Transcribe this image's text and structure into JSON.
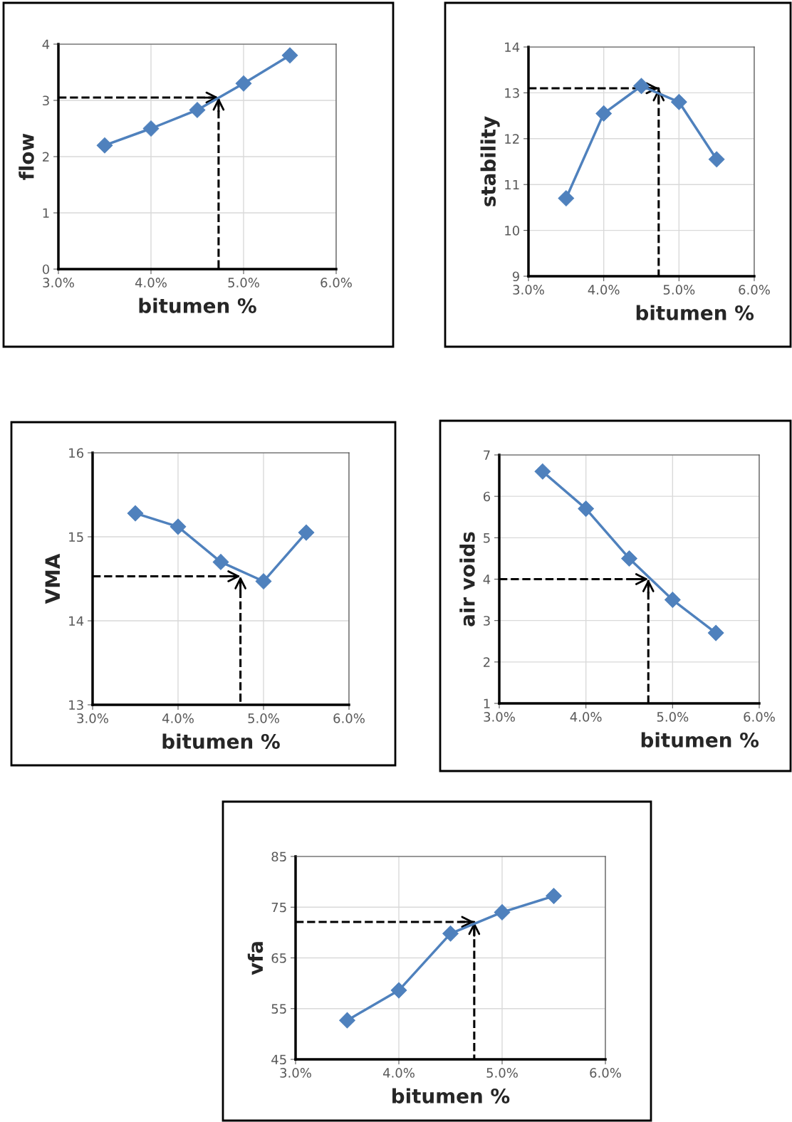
{
  "chart_data": [
    {
      "type": "line",
      "xlabel": "bitumen %",
      "ylabel": "flow",
      "x": [
        3.5,
        4.0,
        4.5,
        5.0,
        5.5
      ],
      "xlim": [
        3,
        6
      ],
      "xticks": [
        {
          "value": 3,
          "label": "3.0%"
        },
        {
          "value": 4,
          "label": "4.0%"
        },
        {
          "value": 5,
          "label": "5.0%"
        },
        {
          "value": 6,
          "label": "6.0%"
        }
      ],
      "ylim": [
        0,
        4
      ],
      "yticks": [
        0,
        1,
        2,
        3,
        4
      ],
      "grid": true,
      "marker": "diamond",
      "series": [
        {
          "color": "#4f81bd",
          "values": [
            2.2,
            2.5,
            2.83,
            3.3,
            3.8
          ]
        },
        {
          "type": "line",
          "line_style": "dashed",
          "marker": "none",
          "color": "#000000",
          "x": [
            3.0,
            4.73,
            4.73
          ],
          "values": [
            3.05,
            3.05,
            0
          ]
        }
      ]
    },
    {
      "type": "line",
      "xlabel": "bitumen %",
      "ylabel": "stability",
      "x": [
        3.5,
        4.0,
        4.5,
        5.0,
        5.5
      ],
      "xlim": [
        3,
        6
      ],
      "xticks": [
        {
          "value": 3,
          "label": "3.0%"
        },
        {
          "value": 4,
          "label": "4.0%"
        },
        {
          "value": 5,
          "label": "5.0%"
        },
        {
          "value": 6,
          "label": "6.0%"
        }
      ],
      "ylim": [
        9,
        14
      ],
      "yticks": [
        9,
        10,
        11,
        12,
        13,
        14
      ],
      "grid": true,
      "marker": "diamond",
      "series": [
        {
          "color": "#4f81bd",
          "values": [
            10.7,
            12.55,
            13.15,
            12.8,
            11.55
          ]
        },
        {
          "type": "line",
          "line_style": "dashed",
          "marker": "none",
          "color": "#000000",
          "x": [
            3.0,
            4.73,
            4.73
          ],
          "values": [
            13.1,
            13.1,
            9
          ]
        }
      ]
    },
    {
      "type": "line",
      "xlabel": "bitumen %",
      "ylabel": "VMA",
      "x": [
        3.5,
        4.0,
        4.5,
        5.0,
        5.5
      ],
      "xlim": [
        3,
        6
      ],
      "xticks": [
        {
          "value": 3,
          "label": "3.0%"
        },
        {
          "value": 4,
          "label": "4.0%"
        },
        {
          "value": 5,
          "label": "5.0%"
        },
        {
          "value": 6,
          "label": "6.0%"
        }
      ],
      "ylim": [
        13,
        16
      ],
      "yticks": [
        13,
        14,
        15,
        16
      ],
      "grid": true,
      "marker": "diamond",
      "series": [
        {
          "color": "#4f81bd",
          "values": [
            15.28,
            15.12,
            14.7,
            14.47,
            15.05
          ]
        },
        {
          "type": "line",
          "line_style": "dashed",
          "marker": "none",
          "color": "#000000",
          "x": [
            3.0,
            4.73,
            4.73
          ],
          "values": [
            14.53,
            14.53,
            13
          ]
        }
      ]
    },
    {
      "type": "line",
      "xlabel": "bitumen %",
      "ylabel": "air voids",
      "x": [
        3.5,
        4.0,
        4.5,
        5.0,
        5.5
      ],
      "xlim": [
        3,
        6
      ],
      "xticks": [
        {
          "value": 3,
          "label": "3.0%"
        },
        {
          "value": 4,
          "label": "4.0%"
        },
        {
          "value": 5,
          "label": "5.0%"
        },
        {
          "value": 6,
          "label": "6.0%"
        }
      ],
      "ylim": [
        1,
        7
      ],
      "yticks": [
        1,
        2,
        3,
        4,
        5,
        6,
        7
      ],
      "grid": true,
      "marker": "diamond",
      "series": [
        {
          "color": "#4f81bd",
          "values": [
            6.6,
            5.7,
            4.5,
            3.5,
            2.7
          ]
        },
        {
          "type": "line",
          "line_style": "dashed",
          "marker": "none",
          "color": "#000000",
          "x": [
            3.0,
            4.72,
            4.72
          ],
          "values": [
            4.0,
            4.0,
            1
          ]
        }
      ]
    },
    {
      "type": "line",
      "xlabel": "bitumen %",
      "ylabel": "vfa",
      "x": [
        3.5,
        4.0,
        4.5,
        5.0,
        5.5
      ],
      "xlim": [
        3,
        6
      ],
      "xticks": [
        {
          "value": 3,
          "label": "3.0%"
        },
        {
          "value": 4,
          "label": "4.0%"
        },
        {
          "value": 5,
          "label": "5.0%"
        },
        {
          "value": 6,
          "label": "6.0%"
        }
      ],
      "ylim": [
        45,
        85
      ],
      "yticks": [
        45,
        55,
        65,
        75,
        85
      ],
      "grid": true,
      "marker": "diamond",
      "series": [
        {
          "color": "#4f81bd",
          "values": [
            52.7,
            58.6,
            69.8,
            74.0,
            77.2
          ]
        },
        {
          "type": "line",
          "line_style": "dashed",
          "marker": "none",
          "color": "#000000",
          "x": [
            3.0,
            4.73,
            4.73
          ],
          "values": [
            72.1,
            72.1,
            45
          ]
        }
      ]
    }
  ]
}
